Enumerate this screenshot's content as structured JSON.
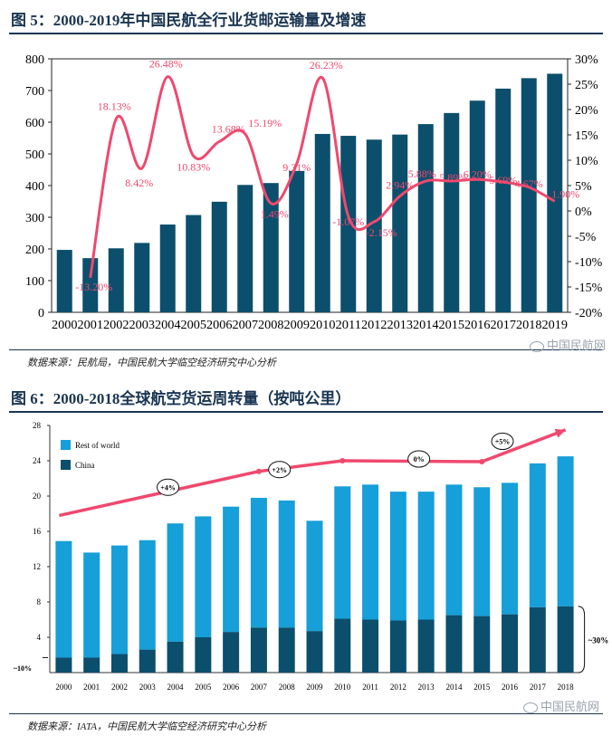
{
  "figure5": {
    "title": "图 5：2000-2019年中国民航全行业货邮运输量及增速",
    "source": "数据来源：民航局，中国民航大学临空经济研究中心分析",
    "watermark": "中国民航网",
    "chart_data": {
      "type": "bar",
      "categories": [
        "2000",
        "2001",
        "2002",
        "2003",
        "2004",
        "2005",
        "2006",
        "2007",
        "2008",
        "2009",
        "2010",
        "2011",
        "2012",
        "2013",
        "2014",
        "2015",
        "2016",
        "2017",
        "2018",
        "2019"
      ],
      "series": [
        {
          "name": "货邮运输量",
          "type": "bar",
          "axis": "left",
          "color": "#0b4f6c",
          "values": [
            197,
            171,
            202,
            219,
            277,
            307,
            349,
            402,
            408,
            446,
            563,
            557,
            545,
            561,
            594,
            629,
            668,
            706,
            739,
            753
          ]
        },
        {
          "name": "增速",
          "type": "line",
          "axis": "right",
          "color": "#f0486e",
          "values": [
            null,
            -13.2,
            18.13,
            8.42,
            26.48,
            10.83,
            13.68,
            15.19,
            1.49,
            9.31,
            26.23,
            -1.07,
            -2.15,
            2.94,
            5.88,
            5.89,
            6.2,
            5.69,
            4.67,
            1.9
          ],
          "labels": [
            "",
            "-13.20%",
            "18.13%",
            "8.42%",
            "26.48%",
            "10.83%",
            "13.68%",
            "15.19%",
            "1.49%",
            "9.31%",
            "26.23%",
            "-1.07%",
            "-2.15%",
            "2.94%",
            "5.88%",
            "5.89%",
            "6.20%",
            "5.69%",
            "4.67%",
            "1.90%"
          ]
        }
      ],
      "ylim_left": [
        0,
        800
      ],
      "yticks_left": [
        "0",
        "100",
        "200",
        "300",
        "400",
        "500",
        "600",
        "700",
        "800"
      ],
      "ylim_right": [
        -20,
        30
      ],
      "yticks_right": [
        "-20%",
        "-15%",
        "-10%",
        "-5%",
        "0%",
        "5%",
        "10%",
        "15%",
        "20%",
        "25%",
        "30%"
      ]
    }
  },
  "figure6": {
    "title": "图 6：2000-2018全球航空货运周转量（按吨公里）",
    "source": "数据来源：IATA，中国民航大学临空经济研究中心分析",
    "watermark": "中国民航网",
    "chart_data": {
      "type": "bar",
      "stacked": true,
      "categories": [
        "2000",
        "2001",
        "2002",
        "2003",
        "2004",
        "2005",
        "2006",
        "2007",
        "2008",
        "2009",
        "2010",
        "2011",
        "2012",
        "2013",
        "2014",
        "2015",
        "2016",
        "2017",
        "2018"
      ],
      "series": [
        {
          "name": "China",
          "color": "#0b4f6c",
          "values": [
            1.7,
            1.7,
            2.1,
            2.6,
            3.5,
            4.0,
            4.6,
            5.1,
            5.1,
            4.7,
            6.1,
            6.0,
            5.9,
            6.0,
            6.5,
            6.4,
            6.6,
            7.4,
            7.5
          ]
        },
        {
          "name": "Rest of world",
          "color": "#169fd8",
          "values": [
            13.2,
            11.9,
            12.3,
            12.4,
            13.4,
            13.7,
            14.2,
            14.7,
            14.4,
            12.5,
            15.0,
            15.3,
            14.6,
            14.5,
            14.8,
            14.6,
            14.9,
            16.3,
            17.0
          ]
        }
      ],
      "legend": [
        "Rest of world",
        "China"
      ],
      "ylim": [
        0,
        28
      ],
      "yticks": [
        "4",
        "8",
        "12",
        "16",
        "20",
        "24",
        "28"
      ],
      "trend": {
        "color": "#f0486e",
        "x": [
          "2000",
          "2007",
          "2010",
          "2015",
          "2018"
        ],
        "y": [
          17.8,
          22.8,
          24.0,
          23.9,
          27.5
        ]
      },
      "annotations": [
        {
          "text": "+4%",
          "x": "2004",
          "y": 21.0
        },
        {
          "text": "+2%",
          "x": "2008",
          "y": 23.0
        },
        {
          "text": "0%",
          "x": "2013",
          "y": 24.2
        },
        {
          "text": "+5%",
          "x": "2016",
          "y": 26.2
        }
      ],
      "share_labels": {
        "start": "~10%",
        "end": "~30%"
      }
    }
  }
}
